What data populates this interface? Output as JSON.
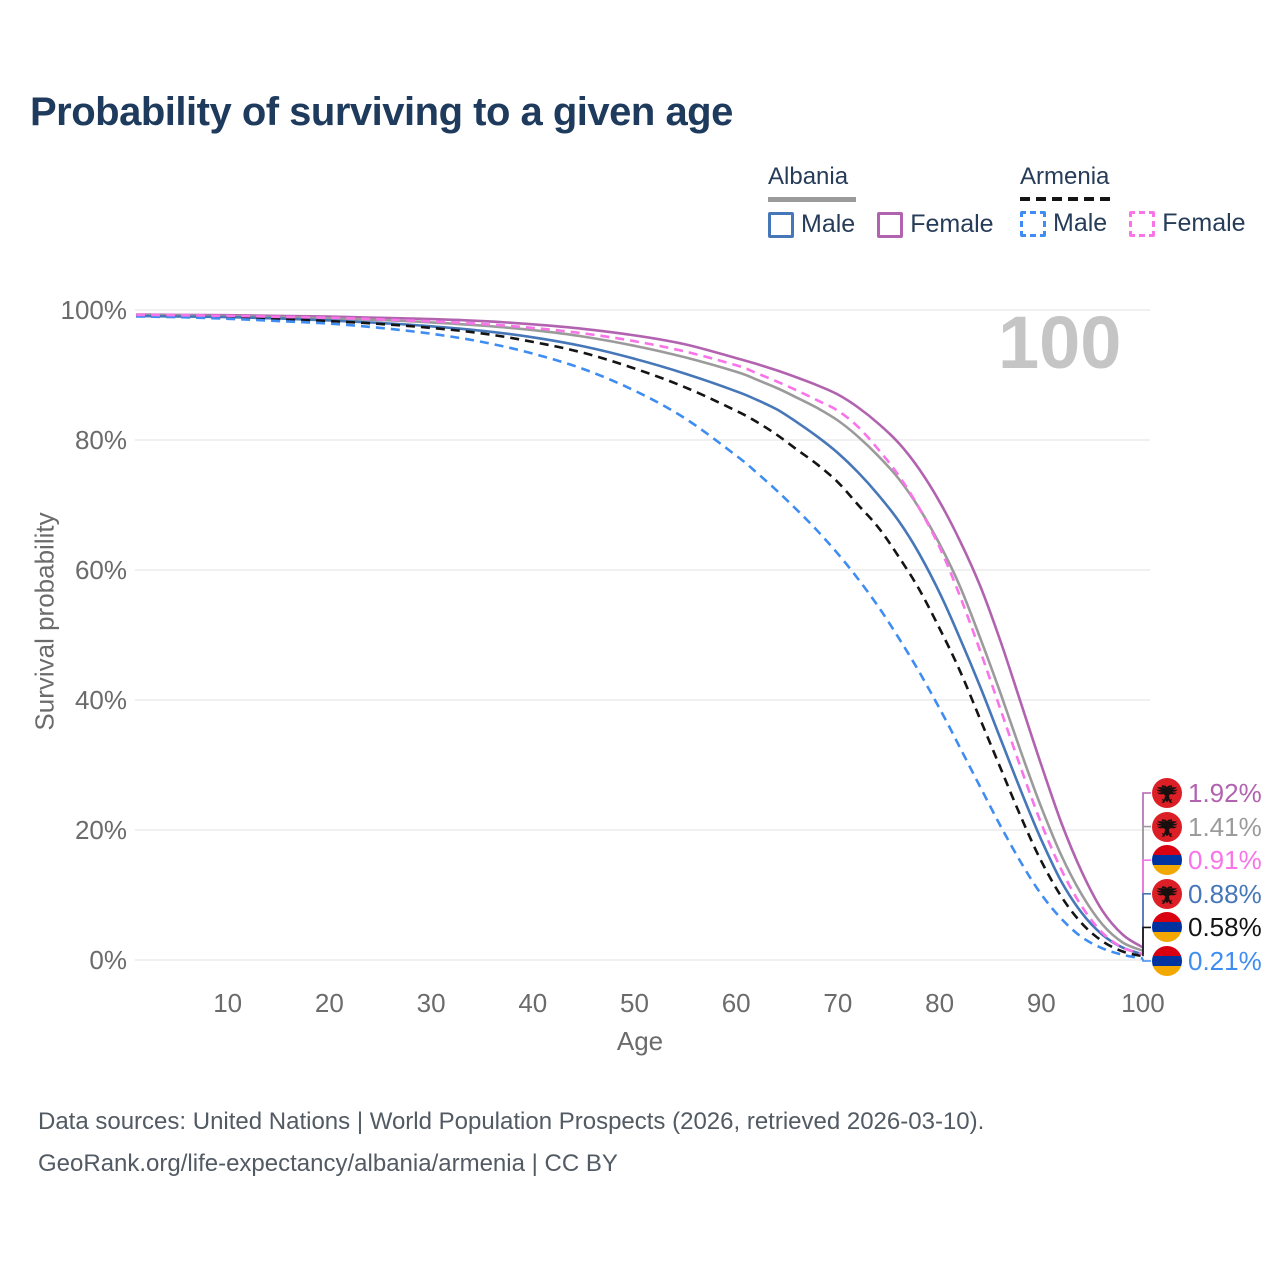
{
  "title": "Probability of surviving to a given age",
  "watermark": "100",
  "legend": {
    "groups": [
      {
        "name": "Albania",
        "dashed": false,
        "line_color": "#9b9b9b",
        "items": [
          {
            "label": "Male",
            "swatch_color": "#4677b8",
            "dashed": false
          },
          {
            "label": "Female",
            "swatch_color": "#b263af",
            "dashed": false
          }
        ]
      },
      {
        "name": "Armenia",
        "dashed": true,
        "line_color": "#141414",
        "items": [
          {
            "label": "Male",
            "swatch_color": "#3f8df2",
            "dashed": true
          },
          {
            "label": "Female",
            "swatch_color": "#f973e9",
            "dashed": true
          }
        ]
      }
    ]
  },
  "axes": {
    "x_label": "Age",
    "y_label": "Survival probability",
    "x_ticks": [
      10,
      20,
      30,
      40,
      50,
      60,
      70,
      80,
      90,
      100
    ],
    "y_ticks": [
      "0%",
      "20%",
      "40%",
      "60%",
      "80%",
      "100%"
    ],
    "x_range": [
      0,
      100
    ],
    "y_range": [
      0,
      100
    ],
    "grid": "horizontal-only"
  },
  "chart_data": {
    "type": "line",
    "title": "Probability of surviving to a given age",
    "xlabel": "Age",
    "ylabel": "Survival probability",
    "xlim": [
      0,
      100
    ],
    "ylim": [
      0,
      100
    ],
    "x": [
      1,
      5,
      10,
      15,
      20,
      25,
      30,
      35,
      40,
      45,
      50,
      55,
      60,
      62,
      64,
      66,
      68,
      70,
      72,
      74,
      76,
      78,
      80,
      82,
      84,
      86,
      88,
      90,
      92,
      94,
      96,
      98,
      100
    ],
    "series": [
      {
        "name": "Albania Female",
        "country": "Albania",
        "sex": "Female",
        "color": "#b263af",
        "dashed": false,
        "values": [
          99.3,
          99.25,
          99.2,
          99.1,
          99.0,
          98.8,
          98.6,
          98.3,
          97.8,
          97.1,
          96.1,
          94.7,
          92.6,
          91.7,
          90.7,
          89.6,
          88.4,
          87.0,
          85.0,
          82.5,
          79.5,
          75.5,
          70.5,
          64.5,
          57.5,
          49.0,
          39.5,
          30.0,
          21.0,
          13.5,
          7.6,
          3.9,
          1.92
        ]
      },
      {
        "name": "Albania Both sexes",
        "country": "Albania",
        "sex": "Both",
        "color": "#9b9b9b",
        "dashed": false,
        "values": [
          99.2,
          99.15,
          99.05,
          98.9,
          98.7,
          98.45,
          98.1,
          97.6,
          96.9,
          95.9,
          94.5,
          92.7,
          90.5,
          89.3,
          88.0,
          86.5,
          84.9,
          83.0,
          80.5,
          77.5,
          74.0,
          69.5,
          64.0,
          57.5,
          49.5,
          41.0,
          32.0,
          23.5,
          16.0,
          10.0,
          5.5,
          2.7,
          1.41
        ]
      },
      {
        "name": "Albania Male",
        "country": "Albania",
        "sex": "Male",
        "color": "#4677b8",
        "dashed": false,
        "values": [
          99.1,
          99.0,
          98.9,
          98.7,
          98.4,
          98.0,
          97.5,
          96.8,
          95.8,
          94.4,
          92.5,
          90.2,
          87.5,
          86.2,
          84.7,
          82.7,
          80.5,
          78.0,
          75.0,
          71.5,
          67.5,
          62.5,
          56.5,
          49.5,
          42.0,
          34.0,
          26.0,
          18.5,
          12.0,
          7.2,
          3.9,
          1.9,
          0.88
        ]
      },
      {
        "name": "Armenia Both sexes",
        "country": "Armenia",
        "sex": "Both",
        "color": "#141414",
        "dashed": true,
        "values": [
          99.1,
          99.0,
          98.85,
          98.6,
          98.3,
          97.85,
          97.25,
          96.4,
          95.1,
          93.4,
          91.0,
          88.1,
          84.5,
          82.8,
          80.8,
          78.5,
          76.2,
          73.5,
          70.0,
          66.5,
          62.0,
          57.0,
          51.0,
          44.5,
          37.0,
          29.5,
          22.0,
          15.2,
          9.7,
          5.6,
          2.9,
          1.3,
          0.58
        ]
      },
      {
        "name": "Armenia Male",
        "country": "Armenia",
        "sex": "Male",
        "color": "#3f8df2",
        "dashed": true,
        "values": [
          99.0,
          98.9,
          98.65,
          98.3,
          97.9,
          97.25,
          96.35,
          95.1,
          93.3,
          90.9,
          87.6,
          83.3,
          77.6,
          75.0,
          72.2,
          69.2,
          66.0,
          62.5,
          58.6,
          54.3,
          49.5,
          44.3,
          38.7,
          32.7,
          26.6,
          20.6,
          15.0,
          10.1,
          6.3,
          3.5,
          1.8,
          0.8,
          0.21
        ]
      },
      {
        "name": "Armenia Female",
        "country": "Armenia",
        "sex": "Female",
        "color": "#f973e9",
        "dashed": true,
        "values": [
          99.25,
          99.2,
          99.1,
          98.95,
          98.8,
          98.55,
          98.25,
          97.85,
          97.25,
          96.4,
          95.2,
          93.6,
          91.5,
          90.3,
          89.0,
          87.6,
          86.1,
          84.5,
          82.0,
          78.5,
          74.5,
          69.5,
          63.5,
          56.0,
          47.5,
          38.5,
          29.5,
          21.0,
          13.8,
          8.2,
          4.2,
          1.9,
          0.91
        ]
      }
    ],
    "end_labels": [
      {
        "value": "1.92%",
        "series": "Albania Female",
        "flag": "albania-flag-icon",
        "color": "#b263af"
      },
      {
        "value": "1.41%",
        "series": "Albania Both sexes",
        "flag": "albania-flag-icon",
        "color": "#9b9b9b"
      },
      {
        "value": "0.91%",
        "series": "Armenia Female",
        "flag": "armenia-flag-icon",
        "color": "#f973e9"
      },
      {
        "value": "0.88%",
        "series": "Albania Male",
        "flag": "albania-flag-icon",
        "color": "#4677b8"
      },
      {
        "value": "0.58%",
        "series": "Armenia Both sexes",
        "flag": "armenia-flag-icon",
        "color": "#141414"
      },
      {
        "value": "0.21%",
        "series": "Armenia Male",
        "flag": "armenia-flag-icon",
        "color": "#3f8df2"
      }
    ],
    "hover_age": "100"
  },
  "footer": {
    "line1": "Data sources: United Nations | World Population Prospects (2026, retrieved 2026-03-10).",
    "line2": "GeoRank.org/life-expectancy/albania/armenia | CC BY"
  }
}
